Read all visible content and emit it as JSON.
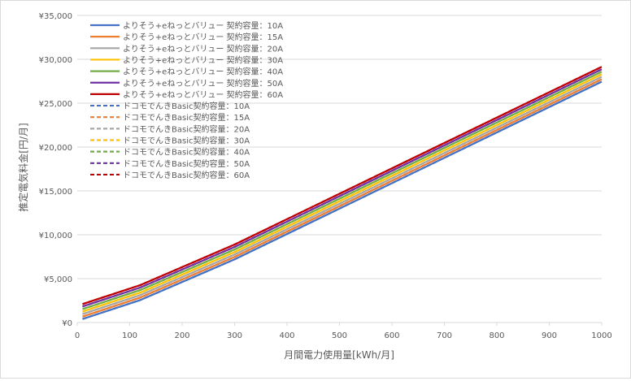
{
  "chart_data": {
    "type": "line",
    "title": "",
    "xlabel": "月間電力使用量[kWh/月]",
    "ylabel": "推定電気料金[円/月]",
    "xlim": [
      0,
      1000
    ],
    "ylim": [
      0,
      35000
    ],
    "x_ticks": [
      "0",
      "100",
      "200",
      "300",
      "400",
      "500",
      "600",
      "700",
      "800",
      "900",
      "1000"
    ],
    "y_ticks": [
      "¥0",
      "¥5,000",
      "¥10,000",
      "¥15,000",
      "¥20,000",
      "¥25,000",
      "¥30,000",
      "¥35,000"
    ],
    "grid": "horizontal",
    "legend_position": "top-left",
    "x": [
      10,
      120,
      300,
      1000
    ],
    "series": [
      {
        "name": "よりそう+eねっとバリュー 契約容量：10A",
        "color": "#4472c4",
        "dash": false,
        "values": [
          400,
          2560,
          7190,
          27450
        ]
      },
      {
        "name": "よりそう+eねっとバリュー 契約容量：15A",
        "color": "#ed7d31",
        "dash": false,
        "values": [
          680,
          2840,
          7470,
          27730
        ]
      },
      {
        "name": "よりそう+eねっとバリュー 契約容量：20A",
        "color": "#a5a5a5",
        "dash": false,
        "values": [
          960,
          3120,
          7750,
          28010
        ]
      },
      {
        "name": "よりそう+eねっとバリュー 契約容量：30A",
        "color": "#ffc000",
        "dash": false,
        "values": [
          1250,
          3410,
          8040,
          28300
        ]
      },
      {
        "name": "よりそう+eねっとバリュー 契約容量：40A",
        "color": "#70ad47",
        "dash": false,
        "values": [
          1530,
          3690,
          8320,
          28580
        ]
      },
      {
        "name": "よりそう+eねっとバリュー 契約容量：50A",
        "color": "#7030a0",
        "dash": false,
        "values": [
          1820,
          3980,
          8610,
          28870
        ]
      },
      {
        "name": "よりそう+eねっとバリュー 契約容量：60A",
        "color": "#c00000",
        "dash": false,
        "values": [
          2100,
          4260,
          8890,
          29150
        ]
      },
      {
        "name": "ドコモでんきBasic契約容量：10A",
        "color": "#4472c4",
        "dash": true,
        "values": [
          400,
          2560,
          7190,
          27450
        ]
      },
      {
        "name": "ドコモでんきBasic契約容量：15A",
        "color": "#ed7d31",
        "dash": true,
        "values": [
          680,
          2840,
          7470,
          27730
        ]
      },
      {
        "name": "ドコモでんきBasic契約容量：20A",
        "color": "#a5a5a5",
        "dash": true,
        "values": [
          960,
          3120,
          7750,
          28010
        ]
      },
      {
        "name": "ドコモでんきBasic契約容量：30A",
        "color": "#ffc000",
        "dash": true,
        "values": [
          1250,
          3410,
          8040,
          28300
        ]
      },
      {
        "name": "ドコモでんきBasic契約容量：40A",
        "color": "#70ad47",
        "dash": true,
        "values": [
          1530,
          3690,
          8320,
          28580
        ]
      },
      {
        "name": "ドコモでんきBasic契約容量：50A",
        "color": "#7030a0",
        "dash": true,
        "values": [
          1820,
          3980,
          8610,
          28870
        ]
      },
      {
        "name": "ドコモでんきBasic契約容量：60A",
        "color": "#c00000",
        "dash": true,
        "values": [
          2100,
          4260,
          8890,
          29150
        ]
      }
    ]
  }
}
